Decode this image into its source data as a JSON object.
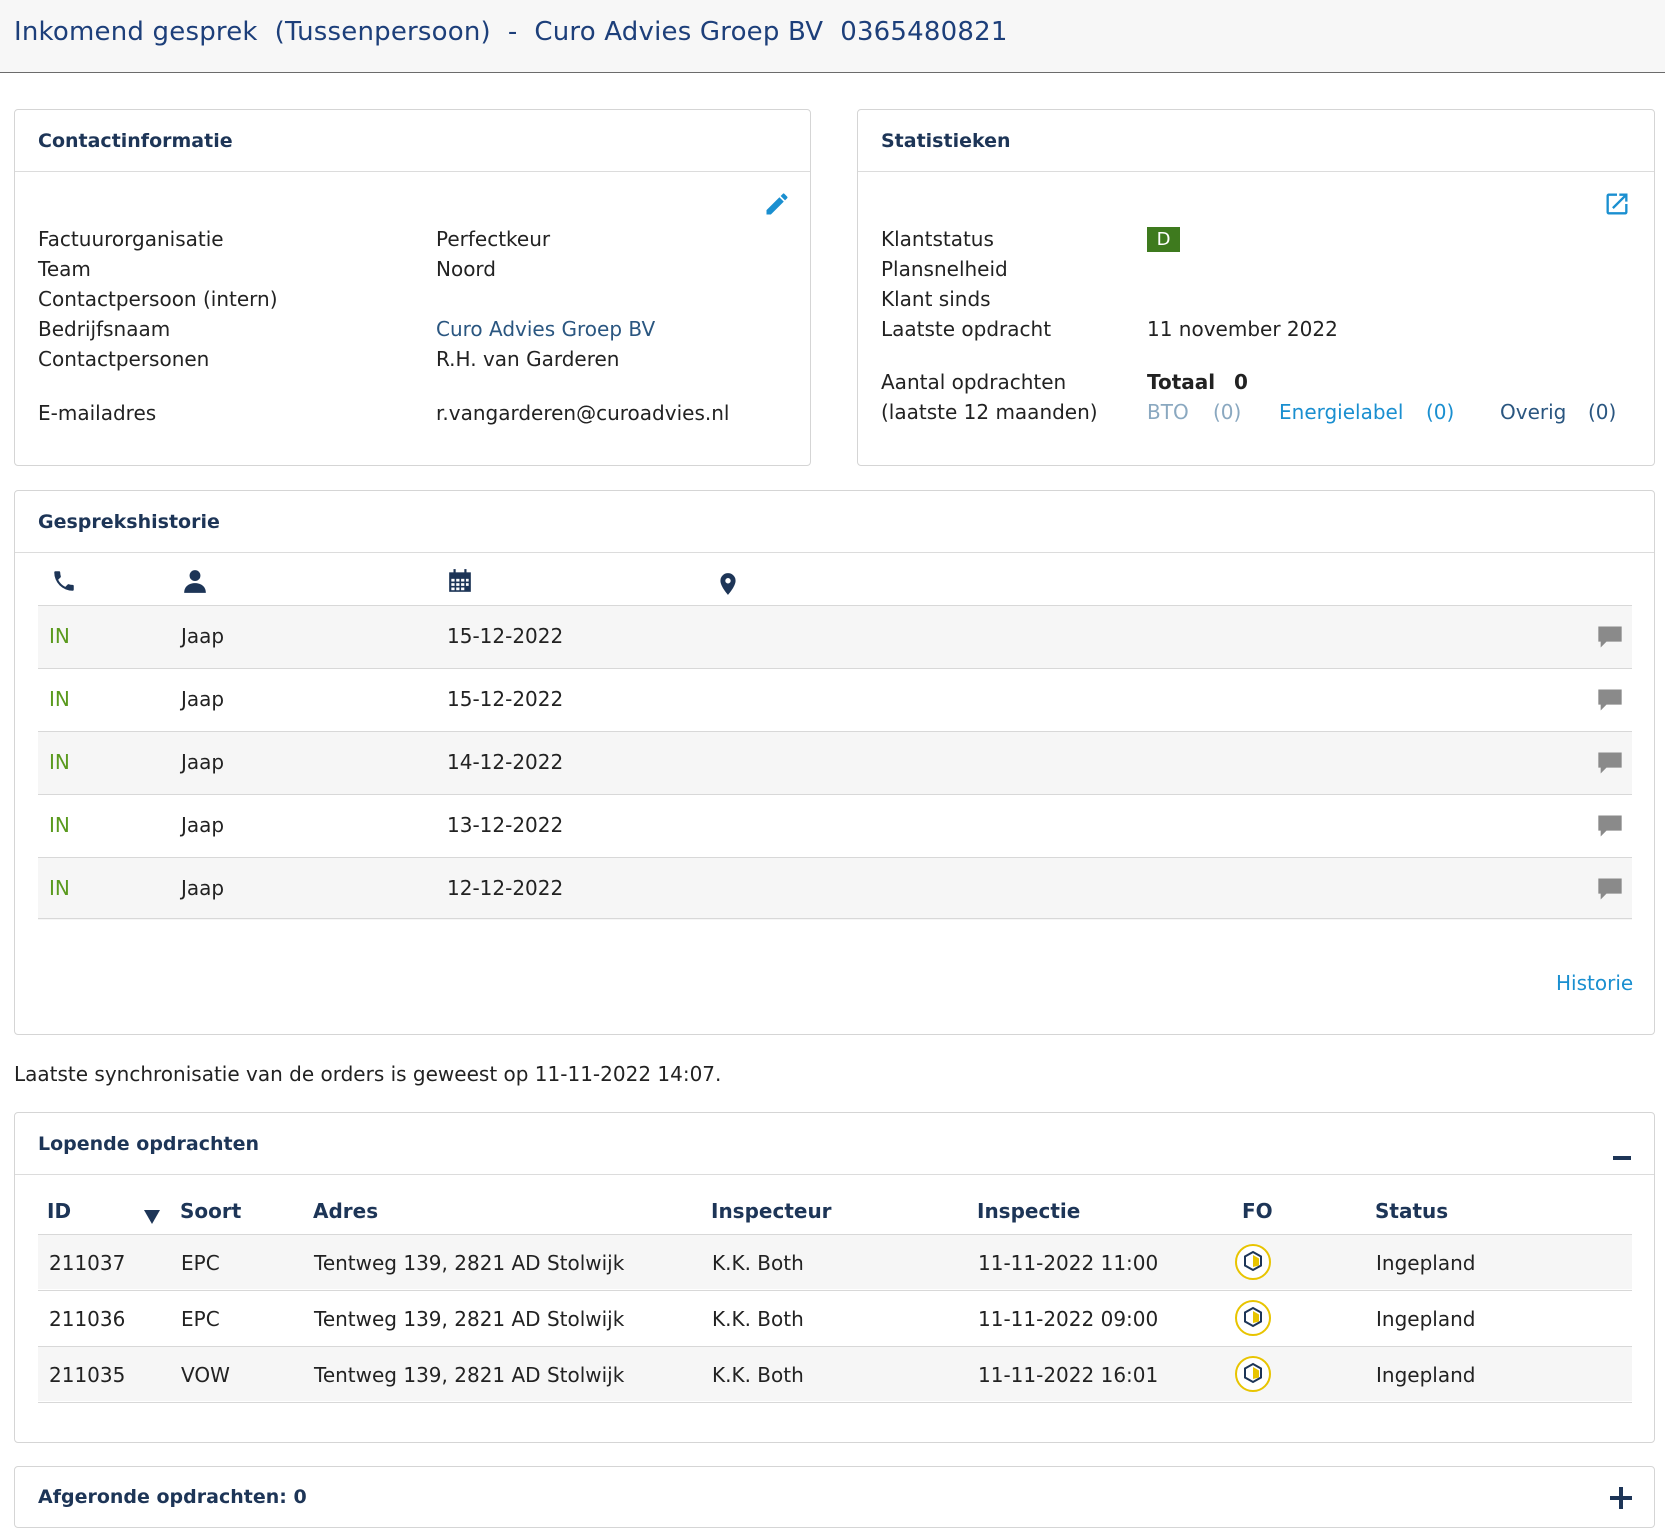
{
  "header": {
    "title": "Inkomend gesprek  (Tussenpersoon)  -  Curo Advies Groep BV  0365480821"
  },
  "contact": {
    "title": "Contactinformatie",
    "rows": [
      {
        "label": "Factuurorganisatie",
        "value": "Perfectkeur"
      },
      {
        "label": "Team",
        "value": "Noord"
      },
      {
        "label": "Contactpersoon (intern)",
        "value": ""
      },
      {
        "label": "Bedrijfsnaam",
        "value": "Curo Advies Groep BV"
      },
      {
        "label": "Contactpersonen",
        "value": "R.H. van Garderen"
      },
      {
        "label": "E-mailadres",
        "value": "r.vangarderen@curoadvies.nl"
      }
    ]
  },
  "stats": {
    "title": "Statistieken",
    "klantstatus_label": "Klantstatus",
    "klantstatus_value": "D",
    "plansnelheid_label": "Plansnelheid",
    "klant_sinds_label": "Klant sinds",
    "laatste_opdracht_label": "Laatste opdracht",
    "laatste_opdracht_value": "11 november 2022",
    "aantal_label_1": "Aantal opdrachten",
    "aantal_label_2": "(laatste 12 maanden)",
    "totaal_label": "Totaal",
    "totaal_value": "0",
    "bto_label": "BTO",
    "bto_value": "(0)",
    "energielabel_label": "Energielabel",
    "energielabel_value": "(0)",
    "overig_label": "Overig",
    "overig_value": "(0)",
    "badge_color": "#3e7a1e"
  },
  "history": {
    "title": "Gesprekshistorie",
    "columns_icons": [
      "phone-icon",
      "user-icon",
      "calendar-icon",
      "location-icon"
    ],
    "rows": [
      {
        "direction": "IN",
        "name": "Jaap",
        "date": "15-12-2022"
      },
      {
        "direction": "IN",
        "name": "Jaap",
        "date": "15-12-2022"
      },
      {
        "direction": "IN",
        "name": "Jaap",
        "date": "14-12-2022"
      },
      {
        "direction": "IN",
        "name": "Jaap",
        "date": "13-12-2022"
      },
      {
        "direction": "IN",
        "name": "Jaap",
        "date": "12-12-2022"
      }
    ],
    "link": "Historie",
    "direction_color": "#5a9a1e"
  },
  "sync_text": "Laatste synchronisatie van de orders is geweest op 11-11-2022 14:07.",
  "orders": {
    "title": "Lopende opdrachten",
    "columns": [
      "ID",
      "Soort",
      "Adres",
      "Inspecteur",
      "Inspectie",
      "FO",
      "Status"
    ],
    "rows": [
      {
        "id": "211037",
        "soort": "EPC",
        "adres": "Tentweg 139, 2821 AD Stolwijk",
        "inspecteur": "K.K. Both",
        "inspectie": "11-11-2022 11:00",
        "status": "Ingepland"
      },
      {
        "id": "211036",
        "soort": "EPC",
        "adres": "Tentweg 139, 2821 AD Stolwijk",
        "inspecteur": "K.K. Both",
        "inspectie": "11-11-2022 09:00",
        "status": "Ingepland"
      },
      {
        "id": "211035",
        "soort": "VOW",
        "adres": "Tentweg 139, 2821 AD Stolwijk",
        "inspecteur": "K.K. Both",
        "inspectie": "11-11-2022 16:01",
        "status": "Ingepland"
      }
    ]
  },
  "completed": {
    "title": "Afgeronde opdrachten: 0"
  }
}
